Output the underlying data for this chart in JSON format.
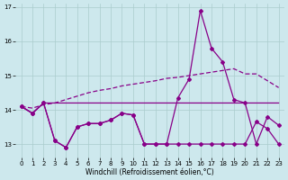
{
  "xlabel": "Windchill (Refroidissement éolien,°C)",
  "background_color": "#cde8ed",
  "grid_color": "#aacccc",
  "line_color": "#880088",
  "xlim": [
    -0.5,
    23.5
  ],
  "ylim": [
    12.6,
    17.1
  ],
  "yticks": [
    13,
    14,
    15,
    16,
    17
  ],
  "xticks": [
    0,
    1,
    2,
    3,
    4,
    5,
    6,
    7,
    8,
    9,
    10,
    11,
    12,
    13,
    14,
    15,
    16,
    17,
    18,
    19,
    20,
    21,
    22,
    23
  ],
  "line_flat": [
    14.1,
    13.9,
    14.2,
    14.2,
    14.2,
    14.2,
    14.2,
    14.2,
    14.2,
    14.2,
    14.2,
    14.2,
    14.2,
    14.2,
    14.2,
    14.2,
    14.2,
    14.2,
    14.2,
    14.2,
    14.2,
    14.2,
    14.2,
    14.2
  ],
  "line_rise": [
    14.1,
    14.05,
    14.15,
    14.2,
    14.3,
    14.4,
    14.5,
    14.57,
    14.62,
    14.7,
    14.75,
    14.8,
    14.85,
    14.92,
    14.95,
    15.0,
    15.05,
    15.1,
    15.15,
    15.2,
    15.05,
    15.05,
    14.85,
    14.65
  ],
  "line_low_zigzag": [
    14.1,
    13.9,
    14.2,
    13.1,
    12.9,
    13.5,
    13.6,
    13.6,
    13.7,
    13.9,
    13.85,
    13.0,
    13.0,
    13.0,
    13.0,
    13.0,
    13.0,
    13.0,
    13.0,
    13.0,
    13.0,
    13.65,
    13.45,
    13.0
  ],
  "line_peak": [
    14.1,
    13.9,
    14.2,
    13.1,
    12.9,
    13.5,
    13.6,
    13.6,
    13.7,
    13.9,
    13.85,
    13.0,
    13.0,
    13.0,
    14.35,
    14.9,
    16.9,
    15.8,
    15.4,
    14.3,
    14.2,
    13.0,
    13.8,
    13.55
  ]
}
